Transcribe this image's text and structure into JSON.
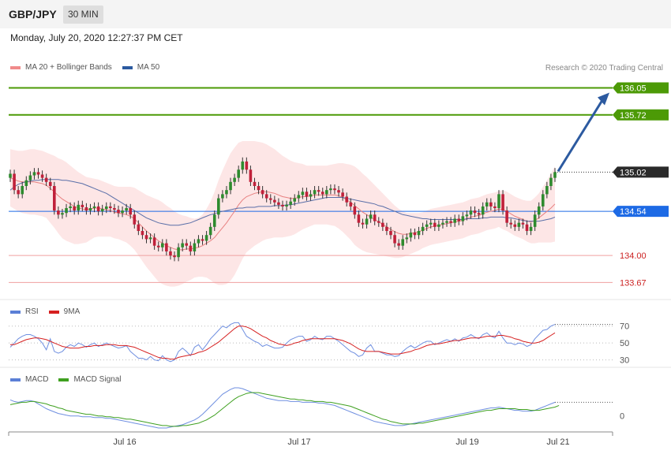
{
  "header": {
    "pair": "GBP/JPY",
    "timeframe": "30 MIN",
    "datetime": "Monday, July 20, 2020 12:27:37 PM CET"
  },
  "legend_main": [
    {
      "label": "MA 20 + Bollinger Bands",
      "color": "#f08a8a"
    },
    {
      "label": "MA 50",
      "color": "#2c5aa0"
    }
  ],
  "credit": "Research © 2020 Trading Central",
  "legend_rsi": [
    {
      "label": "RSI",
      "color": "#5b7fd6"
    },
    {
      "label": "9MA",
      "color": "#d62020"
    }
  ],
  "legend_macd": [
    {
      "label": "MACD",
      "color": "#5b7fd6"
    },
    {
      "label": "MACD Signal",
      "color": "#3fa020"
    }
  ],
  "chart_data": {
    "type": "candlestick",
    "ylim": [
      133.5,
      136.2
    ],
    "x_ticks": [
      "Jul 16",
      "Jul 17",
      "Jul 19",
      "Jul 21"
    ],
    "levels": [
      {
        "value": 136.05,
        "label": "136.05",
        "kind": "resistance",
        "color": "#4c9a06"
      },
      {
        "value": 135.72,
        "label": "135.72",
        "kind": "resistance",
        "color": "#4c9a06"
      },
      {
        "value": 135.02,
        "label": "135.02",
        "kind": "current",
        "color": "#2a2a2a"
      },
      {
        "value": 134.54,
        "label": "134.54",
        "kind": "pivot",
        "color": "#1d6ae5"
      },
      {
        "value": 134.0,
        "label": "134.00",
        "kind": "support",
        "color": "#cc2222"
      },
      {
        "value": 133.67,
        "label": "133.67",
        "kind": "support",
        "color": "#cc2222"
      }
    ],
    "close": [
      135.0,
      134.8,
      134.75,
      134.85,
      134.92,
      134.98,
      135.02,
      134.99,
      134.95,
      134.9,
      134.85,
      134.55,
      134.5,
      134.52,
      134.58,
      134.6,
      134.55,
      134.62,
      134.59,
      134.55,
      134.58,
      134.6,
      134.54,
      134.57,
      134.6,
      134.58,
      134.56,
      134.52,
      134.55,
      134.58,
      134.5,
      134.38,
      134.3,
      134.25,
      134.2,
      134.22,
      134.12,
      134.1,
      134.15,
      134.05,
      134.0,
      133.98,
      134.1,
      134.15,
      134.12,
      134.05,
      134.15,
      134.2,
      134.18,
      134.25,
      134.35,
      134.5,
      134.7,
      134.75,
      134.8,
      134.9,
      134.95,
      135.05,
      135.15,
      135.05,
      134.9,
      134.85,
      134.8,
      134.75,
      134.7,
      134.68,
      134.65,
      134.62,
      134.6,
      134.62,
      134.66,
      134.7,
      134.74,
      134.78,
      134.72,
      134.75,
      134.8,
      134.78,
      134.75,
      134.8,
      134.82,
      134.8,
      134.77,
      134.72,
      134.65,
      134.6,
      134.5,
      134.4,
      134.38,
      134.45,
      134.5,
      134.42,
      134.4,
      134.35,
      134.3,
      134.25,
      134.15,
      134.12,
      134.2,
      134.22,
      134.28,
      134.25,
      134.3,
      134.35,
      134.38,
      134.4,
      134.35,
      134.38,
      134.4,
      134.42,
      134.4,
      134.45,
      134.42,
      134.48,
      134.5,
      134.55,
      134.52,
      134.5,
      134.6,
      134.65,
      134.6,
      134.58,
      134.75,
      134.55,
      134.4,
      134.38,
      134.35,
      134.4,
      134.38,
      134.3,
      134.35,
      134.5,
      134.6,
      134.75,
      134.85,
      134.95,
      135.02
    ],
    "ma20": [
      134.95,
      134.93,
      134.91,
      134.9,
      134.9,
      134.9,
      134.9,
      134.89,
      134.88,
      134.86,
      134.82,
      134.78,
      134.73,
      134.69,
      134.66,
      134.63,
      134.6,
      134.58,
      134.57,
      134.56,
      134.57,
      134.58,
      134.58,
      134.57,
      134.56,
      134.55,
      134.53,
      134.52,
      134.51,
      134.5,
      134.48,
      134.45,
      134.4,
      134.35,
      134.3,
      134.26,
      134.22,
      134.18,
      134.15,
      134.12,
      134.1,
      134.08,
      134.07,
      134.07,
      134.08,
      134.08,
      134.09,
      134.1,
      134.12,
      134.15,
      134.18,
      134.22,
      134.28,
      134.34,
      134.4,
      134.47,
      134.54,
      134.62,
      134.68,
      134.72,
      134.74,
      134.76,
      134.77,
      134.78,
      134.78,
      134.77,
      134.76,
      134.74,
      134.72,
      134.71,
      134.7,
      134.7,
      134.71,
      134.72,
      134.72,
      134.73,
      134.74,
      134.74,
      134.74,
      134.74,
      134.74,
      134.74,
      134.73,
      134.71,
      134.68,
      134.65,
      134.61,
      134.57,
      134.53,
      134.5,
      134.47,
      134.44,
      134.41,
      134.38,
      134.35,
      134.32,
      134.29,
      134.27,
      134.26,
      134.26,
      134.27,
      134.28,
      134.29,
      134.31,
      134.33,
      134.35,
      134.36,
      134.37,
      134.38,
      134.39,
      134.4,
      134.41,
      134.42,
      134.43,
      134.45,
      134.47,
      134.48,
      134.49,
      134.51,
      134.53,
      134.54,
      134.55,
      134.57,
      134.56,
      134.54,
      134.51,
      134.48,
      134.46,
      134.44,
      134.42,
      134.41,
      134.43,
      134.46,
      134.5,
      134.54,
      134.58,
      134.63
    ],
    "ma50": [
      134.8,
      134.84,
      134.87,
      134.89,
      134.9,
      134.91,
      134.92,
      134.92,
      134.93,
      134.93,
      134.93,
      134.93,
      134.93,
      134.92,
      134.92,
      134.91,
      134.9,
      134.89,
      134.88,
      134.86,
      134.84,
      134.82,
      134.8,
      134.78,
      134.76,
      134.73,
      134.7,
      134.67,
      134.64,
      134.61,
      134.58,
      134.55,
      134.52,
      134.49,
      134.46,
      134.44,
      134.42,
      134.4,
      134.39,
      134.38,
      134.37,
      134.37,
      134.37,
      134.38,
      134.39,
      134.4,
      134.42,
      134.44,
      134.46,
      134.48,
      134.5,
      134.51,
      134.53,
      134.54,
      134.55,
      134.56,
      134.57,
      134.58,
      134.58,
      134.59,
      134.59,
      134.59,
      134.6,
      134.6,
      134.6,
      134.6,
      134.61,
      134.61,
      134.61,
      134.62,
      134.62,
      134.63,
      134.64,
      134.65,
      134.66,
      134.67,
      134.68,
      134.69,
      134.7,
      134.71,
      134.71,
      134.71,
      134.71,
      134.71,
      134.7,
      134.69,
      134.68,
      134.67,
      134.66,
      134.65,
      134.64,
      134.63,
      134.61,
      134.6,
      134.58,
      134.56,
      134.54,
      134.52,
      134.5,
      134.49,
      134.48,
      134.47,
      134.46,
      134.45,
      134.45,
      134.44,
      134.44,
      134.44,
      134.44,
      134.44,
      134.44,
      134.44,
      134.44,
      134.44,
      134.45,
      134.45,
      134.45,
      134.45,
      134.46,
      134.46,
      134.47,
      134.47,
      134.47,
      134.47,
      134.46,
      134.46,
      134.45,
      134.44,
      134.43,
      134.42,
      134.42,
      134.42,
      134.42,
      134.43,
      134.44,
      134.45,
      134.47
    ],
    "bb_width": [
      0.35,
      0.36,
      0.37,
      0.38,
      0.39,
      0.4,
      0.4,
      0.4,
      0.4,
      0.4,
      0.42,
      0.44,
      0.46,
      0.48,
      0.48,
      0.47,
      0.46,
      0.44,
      0.42,
      0.4,
      0.38,
      0.36,
      0.35,
      0.34,
      0.33,
      0.32,
      0.32,
      0.32,
      0.33,
      0.34,
      0.36,
      0.38,
      0.4,
      0.42,
      0.44,
      0.46,
      0.48,
      0.5,
      0.5,
      0.49,
      0.48,
      0.46,
      0.44,
      0.42,
      0.4,
      0.38,
      0.36,
      0.36,
      0.38,
      0.42,
      0.48,
      0.56,
      0.64,
      0.7,
      0.75,
      0.78,
      0.78,
      0.76,
      0.72,
      0.68,
      0.66,
      0.64,
      0.62,
      0.6,
      0.58,
      0.56,
      0.54,
      0.52,
      0.5,
      0.48,
      0.46,
      0.44,
      0.42,
      0.4,
      0.38,
      0.37,
      0.36,
      0.36,
      0.36,
      0.36,
      0.37,
      0.38,
      0.4,
      0.42,
      0.44,
      0.46,
      0.48,
      0.48,
      0.47,
      0.46,
      0.44,
      0.42,
      0.4,
      0.38,
      0.36,
      0.34,
      0.32,
      0.3,
      0.28,
      0.26,
      0.25,
      0.24,
      0.23,
      0.22,
      0.22,
      0.22,
      0.22,
      0.22,
      0.22,
      0.22,
      0.22,
      0.22,
      0.22,
      0.22,
      0.22,
      0.22,
      0.22,
      0.22,
      0.22,
      0.22,
      0.22,
      0.22,
      0.22,
      0.24,
      0.24,
      0.24,
      0.24,
      0.24,
      0.24,
      0.25,
      0.26,
      0.28,
      0.3,
      0.34,
      0.38,
      0.42,
      0.46
    ],
    "rsi": {
      "ticks": [
        70,
        50,
        30
      ],
      "ylim": [
        25,
        80
      ],
      "values": [
        45,
        50,
        55,
        58,
        60,
        60,
        58,
        55,
        50,
        42,
        55,
        40,
        38,
        40,
        45,
        48,
        46,
        50,
        48,
        45,
        48,
        50,
        46,
        48,
        50,
        48,
        46,
        44,
        45,
        47,
        40,
        36,
        32,
        32,
        30,
        34,
        30,
        29,
        35,
        30,
        28,
        30,
        40,
        44,
        40,
        35,
        45,
        48,
        42,
        48,
        55,
        60,
        65,
        70,
        68,
        72,
        74,
        74,
        66,
        58,
        55,
        52,
        50,
        46,
        48,
        46,
        44,
        44,
        45,
        50,
        54,
        56,
        58,
        58,
        52,
        54,
        58,
        55,
        54,
        58,
        58,
        55,
        52,
        48,
        44,
        40,
        38,
        34,
        36,
        44,
        48,
        40,
        40,
        38,
        36,
        36,
        34,
        35,
        40,
        44,
        47,
        44,
        47,
        50,
        52,
        52,
        48,
        50,
        52,
        54,
        52,
        55,
        52,
        56,
        57,
        60,
        57,
        55,
        60,
        62,
        58,
        56,
        64,
        56,
        50,
        50,
        48,
        50,
        49,
        46,
        48,
        55,
        60,
        65,
        66,
        70,
        72
      ],
      "ma": [
        48,
        48,
        50,
        52,
        54,
        55,
        56,
        56,
        55,
        54,
        52,
        50,
        48,
        46,
        45,
        44,
        44,
        44,
        45,
        46,
        46,
        47,
        47,
        47,
        48,
        48,
        48,
        47,
        47,
        47,
        46,
        45,
        43,
        41,
        39,
        37,
        35,
        33,
        32,
        32,
        31,
        31,
        33,
        34,
        35,
        36,
        37,
        39,
        40,
        42,
        45,
        48,
        51,
        55,
        59,
        63,
        67,
        70,
        70,
        69,
        67,
        64,
        61,
        58,
        56,
        53,
        51,
        49,
        48,
        47,
        48,
        50,
        51,
        53,
        54,
        55,
        55,
        55,
        55,
        55,
        55,
        55,
        54,
        53,
        51,
        49,
        46,
        43,
        41,
        40,
        40,
        40,
        40,
        39,
        38,
        37,
        37,
        37,
        38,
        39,
        40,
        42,
        43,
        45,
        47,
        48,
        49,
        49,
        50,
        51,
        52,
        53,
        53,
        54,
        55,
        56,
        56,
        56,
        57,
        58,
        58,
        58,
        59,
        59,
        58,
        57,
        55,
        54,
        52,
        51,
        50,
        50,
        51,
        53,
        56,
        59,
        62
      ]
    },
    "macd": {
      "ticks": [
        0
      ],
      "macd": [
        0.2,
        0.18,
        0.17,
        0.18,
        0.19,
        0.19,
        0.18,
        0.15,
        0.12,
        0.09,
        0.07,
        0.05,
        0.03,
        0.02,
        0.01,
        0.0,
        0.0,
        0.0,
        -0.01,
        -0.01,
        -0.01,
        -0.02,
        -0.02,
        -0.02,
        -0.03,
        -0.03,
        -0.04,
        -0.05,
        -0.06,
        -0.07,
        -0.08,
        -0.09,
        -0.1,
        -0.11,
        -0.12,
        -0.13,
        -0.14,
        -0.15,
        -0.15,
        -0.15,
        -0.14,
        -0.13,
        -0.12,
        -0.11,
        -0.09,
        -0.07,
        -0.05,
        -0.02,
        0.02,
        0.07,
        0.12,
        0.17,
        0.22,
        0.27,
        0.3,
        0.33,
        0.35,
        0.35,
        0.34,
        0.32,
        0.3,
        0.28,
        0.26,
        0.24,
        0.22,
        0.21,
        0.2,
        0.19,
        0.19,
        0.19,
        0.18,
        0.18,
        0.18,
        0.17,
        0.17,
        0.17,
        0.17,
        0.16,
        0.16,
        0.15,
        0.14,
        0.13,
        0.11,
        0.09,
        0.07,
        0.05,
        0.03,
        0.01,
        -0.01,
        -0.03,
        -0.05,
        -0.07,
        -0.08,
        -0.09,
        -0.1,
        -0.11,
        -0.12,
        -0.12,
        -0.12,
        -0.11,
        -0.1,
        -0.09,
        -0.08,
        -0.07,
        -0.06,
        -0.05,
        -0.04,
        -0.03,
        -0.02,
        -0.01,
        0.0,
        0.01,
        0.02,
        0.03,
        0.04,
        0.05,
        0.06,
        0.07,
        0.08,
        0.09,
        0.1,
        0.1,
        0.11,
        0.1,
        0.09,
        0.08,
        0.07,
        0.07,
        0.06,
        0.06,
        0.06,
        0.07,
        0.09,
        0.11,
        0.13,
        0.15,
        0.17
      ],
      "signal": [
        0.14,
        0.15,
        0.16,
        0.17,
        0.17,
        0.18,
        0.18,
        0.17,
        0.16,
        0.15,
        0.13,
        0.12,
        0.1,
        0.09,
        0.07,
        0.06,
        0.05,
        0.04,
        0.03,
        0.02,
        0.02,
        0.01,
        0.0,
        0.0,
        -0.01,
        -0.01,
        -0.02,
        -0.02,
        -0.03,
        -0.04,
        -0.04,
        -0.05,
        -0.06,
        -0.07,
        -0.08,
        -0.09,
        -0.1,
        -0.11,
        -0.12,
        -0.12,
        -0.13,
        -0.13,
        -0.13,
        -0.12,
        -0.12,
        -0.11,
        -0.1,
        -0.09,
        -0.07,
        -0.05,
        -0.02,
        0.01,
        0.05,
        0.09,
        0.13,
        0.17,
        0.21,
        0.24,
        0.26,
        0.28,
        0.29,
        0.29,
        0.29,
        0.28,
        0.27,
        0.26,
        0.25,
        0.24,
        0.23,
        0.22,
        0.21,
        0.21,
        0.2,
        0.2,
        0.19,
        0.19,
        0.18,
        0.18,
        0.18,
        0.17,
        0.17,
        0.16,
        0.15,
        0.14,
        0.13,
        0.12,
        0.1,
        0.08,
        0.06,
        0.04,
        0.02,
        0.0,
        -0.02,
        -0.04,
        -0.05,
        -0.07,
        -0.08,
        -0.09,
        -0.1,
        -0.1,
        -0.1,
        -0.1,
        -0.09,
        -0.09,
        -0.08,
        -0.07,
        -0.06,
        -0.05,
        -0.04,
        -0.03,
        -0.02,
        -0.01,
        0.0,
        0.01,
        0.02,
        0.03,
        0.04,
        0.05,
        0.06,
        0.07,
        0.07,
        0.08,
        0.09,
        0.09,
        0.09,
        0.09,
        0.09,
        0.08,
        0.08,
        0.08,
        0.07,
        0.07,
        0.07,
        0.08,
        0.09,
        0.1,
        0.11,
        0.13
      ]
    }
  }
}
